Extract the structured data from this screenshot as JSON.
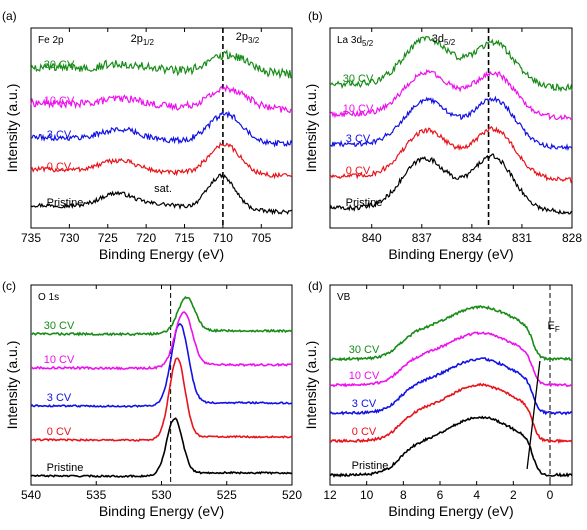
{
  "chart_data": [
    {
      "type": "line",
      "panel_letter": "(a)",
      "tag": "Fe 2p",
      "xlabel": "Binding Energy (eV)",
      "ylabel": "Intensity (a.u.)",
      "xlim": [
        735,
        701
      ],
      "xticks": [
        735,
        730,
        725,
        720,
        715,
        710,
        705
      ],
      "reference_line": 710,
      "annotations": [
        {
          "x": 720.5,
          "y": 0.93,
          "base": "2p",
          "sub": "1/2"
        },
        {
          "x": 706.8,
          "y": 0.94,
          "base": "2p",
          "sub": "3/2"
        },
        {
          "x": 717.8,
          "y": 0.18,
          "base": "sat.",
          "sub": ""
        }
      ],
      "series": [
        {
          "name": "Pristine",
          "color": "#000000",
          "offset": 0.08,
          "peaks": [
            [
              710.2,
              0.17,
              1.8
            ],
            [
              723.8,
              0.07,
              2.2
            ],
            [
              718.0,
              0.02,
              2.5
            ]
          ],
          "noise": 0.01
        },
        {
          "name": "0 CV",
          "color": "#e8141c",
          "offset": 0.26,
          "peaks": [
            [
              709.8,
              0.15,
              2.0
            ],
            [
              723.5,
              0.055,
              2.4
            ]
          ],
          "noise": 0.012
        },
        {
          "name": "3 CV",
          "color": "#1212e4",
          "offset": 0.42,
          "peaks": [
            [
              709.6,
              0.14,
              2.2
            ],
            [
              723.3,
              0.05,
              2.5
            ]
          ],
          "noise": 0.014
        },
        {
          "name": "10 CV",
          "color": "#ee10ee",
          "offset": 0.59,
          "peaks": [
            [
              709.3,
              0.1,
              2.4
            ],
            [
              723.0,
              0.035,
              2.6
            ]
          ],
          "noise": 0.018
        },
        {
          "name": "30 CV",
          "color": "#188c18",
          "offset": 0.77,
          "peaks": [
            [
              709.2,
              0.09,
              2.3
            ],
            [
              723.0,
              0.03,
              2.6
            ]
          ],
          "noise": 0.022
        }
      ]
    },
    {
      "type": "line",
      "panel_letter": "(b)",
      "tag": "La 3d",
      "tag_sub": "5/2",
      "xlabel": "Binding Energy (eV)",
      "ylabel": "Intensity (a.u.)",
      "xlim": [
        842.5,
        828
      ],
      "xticks": [
        840,
        837,
        834,
        831,
        828
      ],
      "reference_line": 833,
      "annotations": [
        {
          "x": 835.7,
          "y": 0.93,
          "base": "3d",
          "sub": "5/2"
        }
      ],
      "series": [
        {
          "name": "Pristine",
          "color": "#000000",
          "offset": 0.08,
          "peaks": [
            [
              836.9,
              0.22,
              1.3
            ],
            [
              832.7,
              0.24,
              1.2
            ]
          ],
          "noise": 0.012
        },
        {
          "name": "0 CV",
          "color": "#e8141c",
          "offset": 0.24,
          "peaks": [
            [
              836.8,
              0.2,
              1.3
            ],
            [
              832.6,
              0.22,
              1.2
            ]
          ],
          "noise": 0.012
        },
        {
          "name": "3 CV",
          "color": "#1212e4",
          "offset": 0.4,
          "peaks": [
            [
              836.8,
              0.19,
              1.3
            ],
            [
              832.6,
              0.21,
              1.2
            ]
          ],
          "noise": 0.012
        },
        {
          "name": "10 CV",
          "color": "#ee10ee",
          "offset": 0.55,
          "peaks": [
            [
              836.8,
              0.18,
              1.3
            ],
            [
              832.6,
              0.19,
              1.2
            ]
          ],
          "noise": 0.013
        },
        {
          "name": "30 CV",
          "color": "#188c18",
          "offset": 0.7,
          "peaks": [
            [
              836.8,
              0.2,
              1.3
            ],
            [
              832.6,
              0.19,
              1.2
            ]
          ],
          "noise": 0.016
        }
      ]
    },
    {
      "type": "line",
      "panel_letter": "(c)",
      "tag": "O 1s",
      "xlabel": "Binding Energy (eV)",
      "ylabel": "Intensity (a.u.)",
      "xlim": [
        540,
        520
      ],
      "xticks": [
        540,
        535,
        530,
        525,
        520
      ],
      "reference_line": 529.3,
      "annotations": [],
      "series": [
        {
          "name": "Pristine",
          "color": "#000000",
          "offset": 0.04,
          "peaks": [
            [
              529.0,
              0.28,
              0.6
            ]
          ],
          "noise": 0.004
        },
        {
          "name": "0 CV",
          "color": "#e8141c",
          "offset": 0.22,
          "peaks": [
            [
              528.8,
              0.4,
              0.6
            ]
          ],
          "noise": 0.004
        },
        {
          "name": "3 CV",
          "color": "#1212e4",
          "offset": 0.39,
          "peaks": [
            [
              528.6,
              0.4,
              0.65
            ]
          ],
          "noise": 0.004
        },
        {
          "name": "10 CV",
          "color": "#ee10ee",
          "offset": 0.58,
          "peaks": [
            [
              528.3,
              0.27,
              0.65
            ]
          ],
          "noise": 0.005
        },
        {
          "name": "30 CV",
          "color": "#188c18",
          "offset": 0.75,
          "peaks": [
            [
              528.1,
              0.17,
              0.65
            ]
          ],
          "noise": 0.005
        }
      ]
    },
    {
      "type": "line",
      "panel_letter": "(d)",
      "tag": "VB",
      "xlabel": "Binding Energy (eV)",
      "ylabel": "Intensity (a.u.)",
      "xlim": [
        12,
        -1.2
      ],
      "xticks": [
        12,
        10,
        8,
        6,
        4,
        2,
        0
      ],
      "reference_line": 0,
      "annotations": [
        {
          "x": -0.2,
          "y": 0.78,
          "base": "E",
          "sub": "F"
        }
      ],
      "series": [
        {
          "name": "Pristine",
          "color": "#000000",
          "offset": 0.05,
          "amp": 0.29,
          "noise": 0.006
        },
        {
          "name": "0 CV",
          "color": "#e8141c",
          "offset": 0.22,
          "amp": 0.28,
          "noise": 0.006
        },
        {
          "name": "3 CV",
          "color": "#1212e4",
          "offset": 0.36,
          "amp": 0.27,
          "noise": 0.006
        },
        {
          "name": "10 CV",
          "color": "#ee10ee",
          "offset": 0.5,
          "amp": 0.26,
          "noise": 0.006
        },
        {
          "name": "30 CV",
          "color": "#188c18",
          "offset": 0.63,
          "amp": 0.26,
          "noise": 0.006
        }
      ]
    }
  ]
}
